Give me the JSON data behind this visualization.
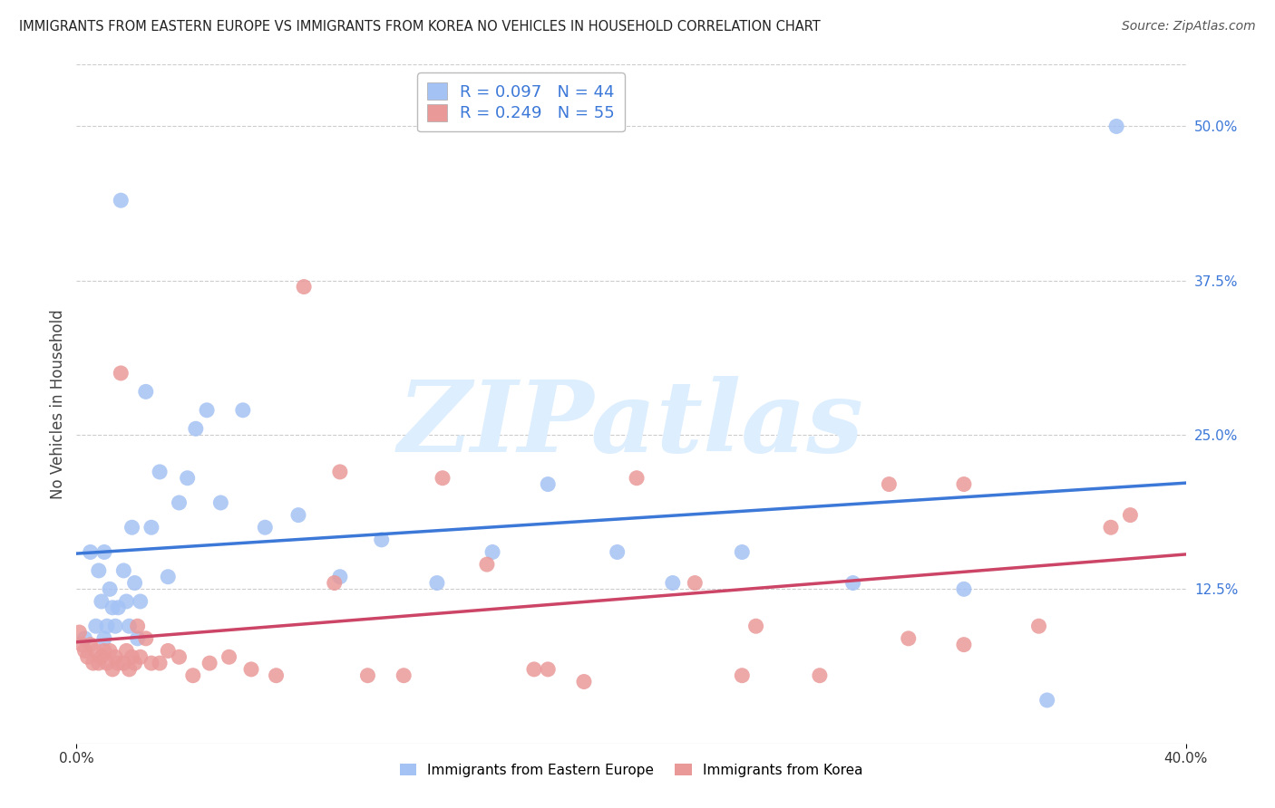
{
  "title": "IMMIGRANTS FROM EASTERN EUROPE VS IMMIGRANTS FROM KOREA NO VEHICLES IN HOUSEHOLD CORRELATION CHART",
  "source": "Source: ZipAtlas.com",
  "xlabel_bottom_left": "0.0%",
  "xlabel_bottom_right": "40.0%",
  "ylabel": "No Vehicles in Household",
  "right_yticks": [
    "50.0%",
    "37.5%",
    "25.0%",
    "12.5%"
  ],
  "right_ytick_vals": [
    0.5,
    0.375,
    0.25,
    0.125
  ],
  "xlim": [
    0.0,
    0.4
  ],
  "ylim": [
    0.0,
    0.55
  ],
  "r_eastern": 0.097,
  "n_eastern": 44,
  "r_korea": 0.249,
  "n_korea": 55,
  "color_eastern": "#a4c2f4",
  "color_korea": "#ea9999",
  "color_line_eastern": "#3c78d8",
  "color_line_korea": "#cc4466",
  "watermark_color": "#ddeeff",
  "background_color": "#ffffff",
  "grid_color": "#cccccc",
  "eastern_x": [
    0.003,
    0.005,
    0.007,
    0.008,
    0.009,
    0.01,
    0.01,
    0.011,
    0.012,
    0.013,
    0.014,
    0.015,
    0.016,
    0.017,
    0.018,
    0.019,
    0.02,
    0.021,
    0.022,
    0.023,
    0.025,
    0.027,
    0.03,
    0.033,
    0.037,
    0.04,
    0.043,
    0.047,
    0.052,
    0.06,
    0.068,
    0.08,
    0.095,
    0.11,
    0.13,
    0.15,
    0.17,
    0.195,
    0.215,
    0.24,
    0.28,
    0.32,
    0.35,
    0.375
  ],
  "eastern_y": [
    0.085,
    0.155,
    0.095,
    0.14,
    0.115,
    0.155,
    0.085,
    0.095,
    0.125,
    0.11,
    0.095,
    0.11,
    0.44,
    0.14,
    0.115,
    0.095,
    0.175,
    0.13,
    0.085,
    0.115,
    0.285,
    0.175,
    0.22,
    0.135,
    0.195,
    0.215,
    0.255,
    0.27,
    0.195,
    0.27,
    0.175,
    0.185,
    0.135,
    0.165,
    0.13,
    0.155,
    0.21,
    0.155,
    0.13,
    0.155,
    0.13,
    0.125,
    0.035,
    0.5
  ],
  "korea_x": [
    0.001,
    0.002,
    0.003,
    0.004,
    0.005,
    0.006,
    0.007,
    0.008,
    0.009,
    0.01,
    0.011,
    0.012,
    0.013,
    0.014,
    0.015,
    0.016,
    0.017,
    0.018,
    0.019,
    0.02,
    0.021,
    0.022,
    0.023,
    0.025,
    0.027,
    0.03,
    0.033,
    0.037,
    0.042,
    0.048,
    0.055,
    0.063,
    0.072,
    0.082,
    0.093,
    0.105,
    0.118,
    0.132,
    0.148,
    0.165,
    0.183,
    0.202,
    0.223,
    0.245,
    0.268,
    0.293,
    0.32,
    0.347,
    0.373,
    0.32,
    0.095,
    0.17,
    0.24,
    0.3,
    0.38
  ],
  "korea_y": [
    0.09,
    0.08,
    0.075,
    0.07,
    0.08,
    0.065,
    0.075,
    0.065,
    0.07,
    0.075,
    0.065,
    0.075,
    0.06,
    0.07,
    0.065,
    0.3,
    0.065,
    0.075,
    0.06,
    0.07,
    0.065,
    0.095,
    0.07,
    0.085,
    0.065,
    0.065,
    0.075,
    0.07,
    0.055,
    0.065,
    0.07,
    0.06,
    0.055,
    0.37,
    0.13,
    0.055,
    0.055,
    0.215,
    0.145,
    0.06,
    0.05,
    0.215,
    0.13,
    0.095,
    0.055,
    0.21,
    0.08,
    0.095,
    0.175,
    0.21,
    0.22,
    0.06,
    0.055,
    0.085,
    0.185
  ]
}
